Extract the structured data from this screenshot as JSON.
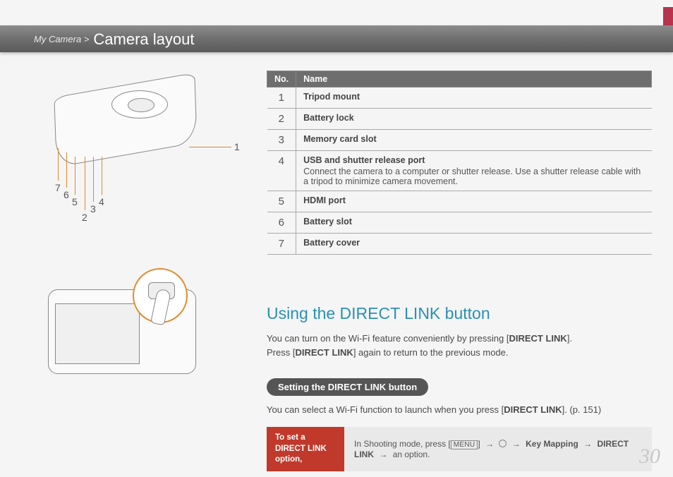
{
  "header": {
    "breadcrumb_parent": "My Camera >",
    "breadcrumb_title": "Camera layout"
  },
  "parts_table": {
    "col_no": "No.",
    "col_name": "Name",
    "rows": [
      {
        "no": "1",
        "name": "Tripod mount",
        "desc": ""
      },
      {
        "no": "2",
        "name": "Battery lock",
        "desc": ""
      },
      {
        "no": "3",
        "name": "Memory card slot",
        "desc": ""
      },
      {
        "no": "4",
        "name": "USB and shutter release port",
        "desc": "Connect the camera to a computer or shutter release. Use a shutter release cable with a tripod to minimize camera movement."
      },
      {
        "no": "5",
        "name": "HDMI port",
        "desc": ""
      },
      {
        "no": "6",
        "name": "Battery slot",
        "desc": ""
      },
      {
        "no": "7",
        "name": "Battery cover",
        "desc": ""
      }
    ]
  },
  "callouts": [
    "1",
    "2",
    "3",
    "4",
    "5",
    "6",
    "7"
  ],
  "section": {
    "title": "Using the DIRECT LINK button",
    "p1a": "You can turn on the Wi-Fi feature conveniently by pressing [",
    "p1b": "DIRECT LINK",
    "p1c": "].",
    "p2a": "Press [",
    "p2b": "DIRECT LINK",
    "p2c": "] again to return to the previous mode.",
    "subheading": "Setting the DIRECT LINK button",
    "p3a": "You can select a Wi-Fi function to launch when you press [",
    "p3b": "DIRECT LINK",
    "p3c": "]. (p. 151)"
  },
  "instruction": {
    "left": "To set a DIRECT LINK option,",
    "right_pre": "In Shooting mode, press [",
    "menu_label": "MENU",
    "right_post1": "] ",
    "arrow": "→",
    "key_mapping": "Key Mapping",
    "direct_link": "DIRECT LINK",
    "option_text": " an option."
  },
  "page_number": "30",
  "colors": {
    "accent": "#b8334c",
    "teal": "#2a90b5",
    "callout": "#e08a2a",
    "instr_red": "#c0392b"
  }
}
